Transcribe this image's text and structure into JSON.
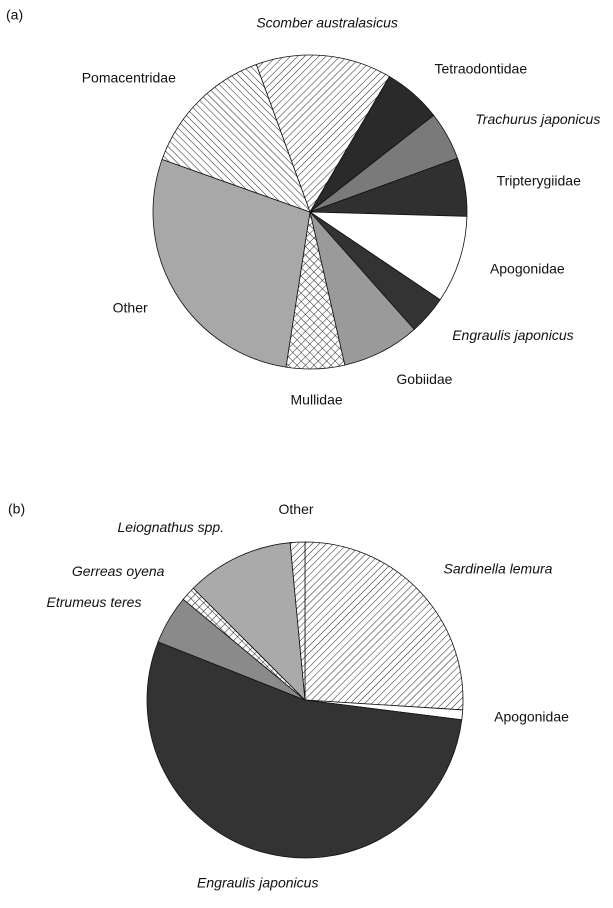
{
  "chart_data": [
    {
      "type": "pie",
      "panel": "(a)",
      "categories": [
        "Scomber australasicus",
        "Tetraodontidae",
        "Trachurus japonicus",
        "Tripterygiidae",
        "Apogonidae",
        "Engraulis japonicus",
        "Gobiidae",
        "Mullidae",
        "Other",
        "Pomacentridae"
      ],
      "values": [
        14,
        6,
        5,
        6,
        9,
        4,
        8,
        6,
        28,
        14
      ],
      "italic": [
        true,
        false,
        true,
        false,
        false,
        true,
        false,
        false,
        false,
        false
      ],
      "colors": [
        "#ffffff",
        "#2a2a2a",
        "#7a7a7a",
        "#303030",
        "#ffffff",
        "#333333",
        "#9a9a9a",
        "#ffffff",
        "#a8a8a8",
        "#ffffff"
      ],
      "patterns": [
        "hatch-right",
        null,
        null,
        null,
        null,
        null,
        null,
        "crosshatch",
        null,
        "hatch-left"
      ]
    },
    {
      "type": "pie",
      "panel": "(b)",
      "categories": [
        "Sardinella lemura",
        "Apogonidae",
        "Engraulis japonicus",
        "Etrumeus teres",
        "Gerreas oyena",
        "Leiognathus spp.",
        "Other"
      ],
      "values": [
        26,
        1,
        54,
        5,
        1.5,
        11,
        1.5
      ],
      "italic": [
        true,
        false,
        true,
        true,
        true,
        true,
        false
      ],
      "colors": [
        "#ffffff",
        "#ffffff",
        "#333333",
        "#8a8a8a",
        "#ffffff",
        "#aaaaaa",
        "#ffffff"
      ],
      "patterns": [
        "hatch-right",
        null,
        null,
        null,
        "crosshatch",
        null,
        "hatch-right"
      ]
    }
  ]
}
